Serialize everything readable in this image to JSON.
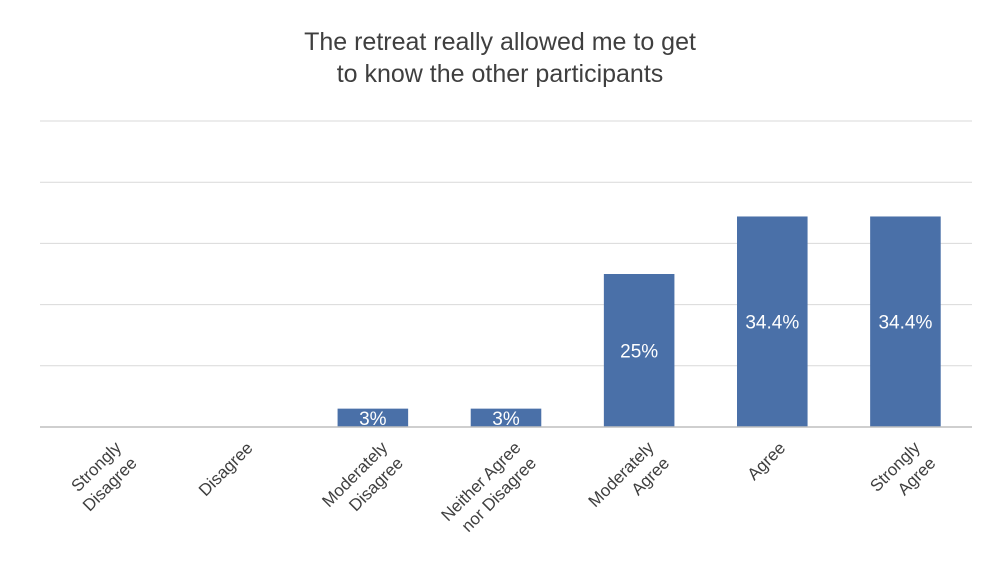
{
  "chart_data": {
    "type": "bar",
    "title_lines": [
      "The retreat really allowed me to get",
      "to know the other participants"
    ],
    "categories": [
      [
        "Strongly",
        "Disagree"
      ],
      [
        "Disagree"
      ],
      [
        "Moderately",
        "Disagree"
      ],
      [
        "Neither Agree",
        "nor Disagree"
      ],
      [
        "Moderately",
        "Agree"
      ],
      [
        "Agree"
      ],
      [
        "Strongly",
        "Agree"
      ]
    ],
    "values": [
      0,
      0,
      3,
      3,
      25,
      34.4,
      34.4
    ],
    "data_labels": [
      "",
      "",
      "3%",
      "3%",
      "25%",
      "34.4%",
      "34.4%"
    ],
    "ylim": [
      0,
      50
    ],
    "y_unit": "%",
    "grid": true,
    "y_axis_labels_visible": false,
    "bar_color": "#4a70a8",
    "gridline_color": "#d9d9d9"
  }
}
